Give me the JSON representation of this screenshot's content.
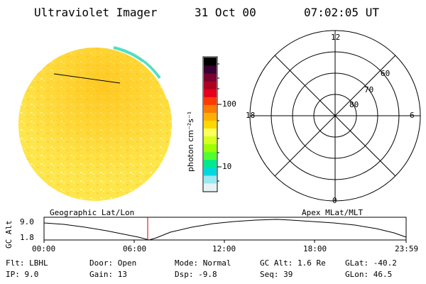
{
  "header": {
    "title": "Ultraviolet Imager",
    "date": "31 Oct 00",
    "time": "07:02:05 UT"
  },
  "colorbar": {
    "unit_label": "photon cm⁻²s⁻¹",
    "ticks": [
      "100",
      "10"
    ],
    "colors": [
      "#000000",
      "#3a0033",
      "#7a0030",
      "#b00020",
      "#e4001c",
      "#ff3a00",
      "#ff7a00",
      "#ffb000",
      "#ffd800",
      "#ffff5a",
      "#d6ff20",
      "#9cff00",
      "#50ff30",
      "#00e890",
      "#00d8e0",
      "#9ae8f0",
      "#e6f4f6"
    ]
  },
  "polar": {
    "labels": {
      "top": "12",
      "left": "18",
      "right": "6",
      "bottom": "0"
    },
    "rings": [
      "60",
      "70",
      "80"
    ]
  },
  "orbit": {
    "left_title": "Geographic Lat/Lon",
    "right_title": "Apex MLat/MLT",
    "ylabel": "GC Alt",
    "y_ticks": [
      "9.0",
      "1.8"
    ],
    "x_ticks": [
      "00:00",
      "06:00",
      "12:00",
      "18:00",
      "23:59"
    ]
  },
  "info": {
    "flt": "Flt: LBHL",
    "ip": "IP:  9.0",
    "door": "Door: Open",
    "gain": "Gain: 13",
    "mode": "Mode: Normal",
    "dsp": "Dsp:   -9.8",
    "gcalt": "GC Alt: 1.6 Re",
    "seq": "Seq: 39",
    "glat": "GLat: -40.2",
    "glon": "GLon:  46.5"
  }
}
